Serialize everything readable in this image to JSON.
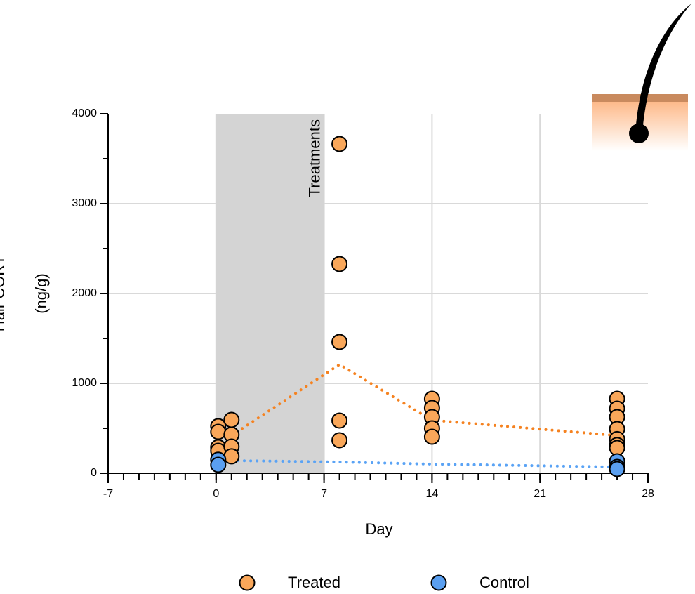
{
  "chart_data": {
    "type": "scatter",
    "x_label": "Day",
    "y_label_lines": [
      "Hair CORT",
      "(ng/g)"
    ],
    "annotation": "Treatments",
    "shade": [
      0,
      7
    ],
    "xlim": [
      -7,
      28
    ],
    "xticks": [
      -7,
      0,
      7,
      14,
      21,
      28
    ],
    "x_minor_step": 1,
    "ylim": [
      0,
      4000
    ],
    "yticks": [
      0,
      1000,
      2000,
      3000,
      4000
    ],
    "y_minor_step": 500,
    "grid": true,
    "series": [
      {
        "name": "Treated",
        "color": "#f9a75a",
        "line_color": "#f58220",
        "x": [
          0,
          0,
          0,
          0,
          1,
          1,
          1,
          1,
          8,
          8,
          8,
          8,
          8,
          14,
          14,
          14,
          14,
          14,
          26,
          26,
          26,
          26,
          26,
          26,
          26
        ],
        "values": [
          523,
          461,
          289,
          250,
          594,
          430,
          297,
          188,
          3664,
          2328,
          1461,
          586,
          367,
          828,
          727,
          625,
          500,
          406,
          828,
          719,
          625,
          492,
          380,
          313,
          281
        ],
        "mean_x": [
          1,
          8,
          14,
          26
        ],
        "mean_values": [
          420,
          1210,
          590,
          420
        ]
      },
      {
        "name": "Control",
        "color": "#5a9ff0",
        "line_color": "#5aa3f5",
        "x": [
          0,
          0,
          26,
          26,
          26
        ],
        "values": [
          150,
          94,
          133,
          70,
          47
        ],
        "mean_x": [
          1,
          8,
          14,
          26
        ],
        "mean_values": [
          141,
          125,
          102,
          70
        ]
      }
    ]
  }
}
